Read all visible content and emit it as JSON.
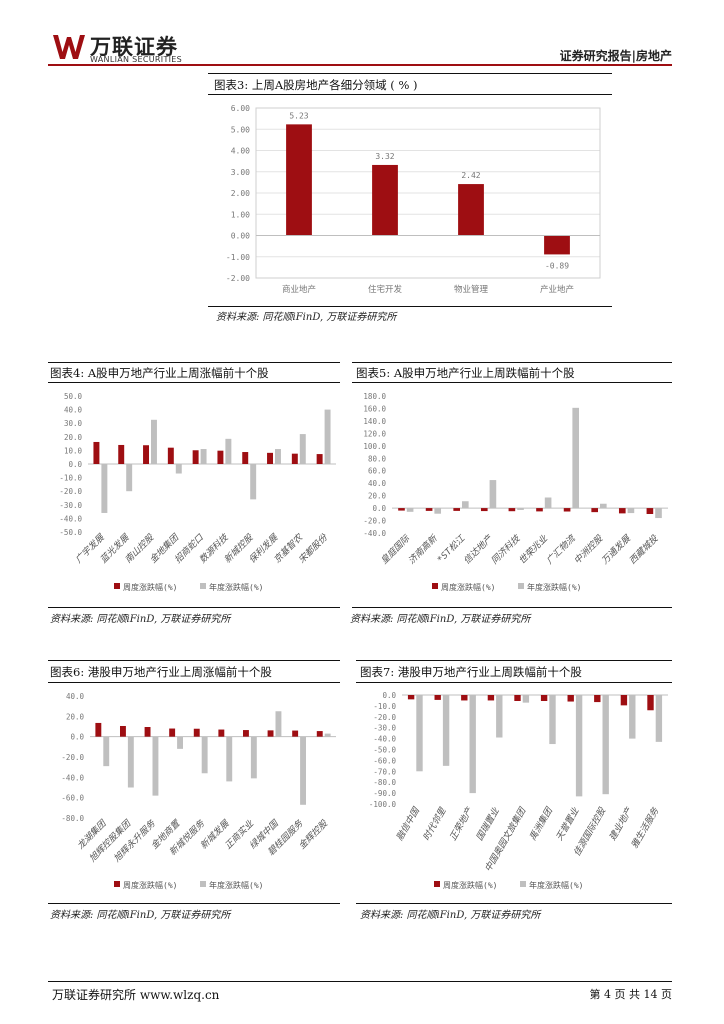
{
  "header": {
    "logo_cn": "万联证券",
    "logo_en": "WANLIAN SECURITIES",
    "report_type": "证券研究报告|房地产"
  },
  "colors": {
    "brand": "#9e0e12",
    "week_bar": "#9e0e12",
    "year_bar": "#bfbfbf"
  },
  "figures": [
    {
      "id": "fig3",
      "title": "图表3: 上周A股房地产各细分领域 ( % )",
      "source": "资料来源: 同花顺iFinD, 万联证券研究所"
    },
    {
      "id": "fig4",
      "title": "图表4: A股申万地产行业上周涨幅前十个股",
      "source": "资料来源: 同花顺iFinD, 万联证券研究所"
    },
    {
      "id": "fig5",
      "title": "图表5: A股申万地产行业上周跌幅前十个股",
      "source": "资料来源: 同花顺iFinD, 万联证券研究所"
    },
    {
      "id": "fig6",
      "title": "图表6: 港股申万地产行业上周涨幅前十个股",
      "source": "资料来源: 同花顺iFinD, 万联证券研究所"
    },
    {
      "id": "fig7",
      "title": "图表7: 港股申万地产行业上周跌幅前十个股",
      "source": "资料来源: 同花顺iFinD, 万联证券研究所"
    }
  ],
  "chart_data": [
    {
      "type": "bar",
      "categories": [
        "商业地产",
        "住宅开发",
        "物业管理",
        "产业地产"
      ],
      "values": [
        5.23,
        3.32,
        2.42,
        -0.89
      ],
      "value_labels": [
        "5.23",
        "3.32",
        "2.42",
        "-0.89"
      ],
      "ylim": [
        -2,
        6
      ],
      "yticks": [
        "6.00",
        "5.00",
        "4.00",
        "3.00",
        "2.00",
        "1.00",
        "0.00",
        "-1.00",
        "-2.00"
      ],
      "grid": true
    },
    {
      "type": "bar",
      "categories": [
        "广宇发展",
        "蓝光发展",
        "南山控股",
        "金地集团",
        "招商蛇口",
        "数源科技",
        "新城控股",
        "保利发展",
        "京基智农",
        "宋都股份"
      ],
      "series": [
        {
          "name": "周度涨跌幅(%)",
          "values": [
            16.2,
            14.0,
            13.8,
            12.0,
            10.1,
            9.8,
            8.8,
            8.2,
            7.6,
            7.3
          ]
        },
        {
          "name": "年度涨跌幅(%)",
          "values": [
            -36.0,
            -20.0,
            32.5,
            -7.0,
            11.0,
            18.5,
            -26.0,
            11.0,
            22.0,
            40.0
          ]
        }
      ],
      "ylim": [
        -50,
        50
      ],
      "yticks": [
        "50.0",
        "40.0",
        "30.0",
        "20.0",
        "10.0",
        "0.0",
        "-10.0",
        "-20.0",
        "-30.0",
        "-40.0",
        "-50.0"
      ],
      "legend": "bottom",
      "grid": false
    },
    {
      "type": "bar",
      "categories": [
        "皇庭国际",
        "济南高新",
        "*ST松江",
        "信达地产",
        "同济科技",
        "世荣兆业",
        "广汇物流",
        "中洲控股",
        "万通发展",
        "西藏城投"
      ],
      "series": [
        {
          "name": "周度涨跌幅(%)",
          "values": [
            -4.0,
            -4.5,
            -4.5,
            -4.8,
            -5.0,
            -5.3,
            -5.5,
            -6.5,
            -8.5,
            -9.5
          ]
        },
        {
          "name": "年度涨跌幅(%)",
          "values": [
            -6.0,
            -9.0,
            11.0,
            45.0,
            -3.0,
            17.0,
            161.0,
            7.0,
            -8.0,
            -16.0
          ]
        }
      ],
      "ylim": [
        -40,
        180
      ],
      "yticks": [
        "180.0",
        "160.0",
        "140.0",
        "120.0",
        "100.0",
        "80.0",
        "60.0",
        "40.0",
        "20.0",
        "0.0",
        "-20.0",
        "-40.0"
      ],
      "legend": "bottom",
      "grid": false
    },
    {
      "type": "bar",
      "categories": [
        "龙湖集团",
        "旭辉控股集团",
        "旭辉永升服务",
        "金地商置",
        "新城悦服务",
        "新城发展",
        "正商实业",
        "绿城中国",
        "碧桂园服务",
        "金辉控股"
      ],
      "series": [
        {
          "name": "周度涨跌幅(%)",
          "values": [
            13.5,
            10.5,
            9.5,
            8.0,
            7.8,
            7.0,
            6.5,
            6.2,
            6.0,
            5.5
          ]
        },
        {
          "name": "年度涨跌幅(%)",
          "values": [
            -29.0,
            -50.0,
            -58.0,
            -12.0,
            -36.0,
            -44.0,
            -41.0,
            25.0,
            -67.0,
            3.0
          ]
        }
      ],
      "ylim": [
        -80,
        40
      ],
      "yticks": [
        "40.0",
        "20.0",
        "0.0",
        "-20.0",
        "-40.0",
        "-60.0",
        "-80.0"
      ],
      "legend": "bottom",
      "grid": false
    },
    {
      "type": "bar",
      "categories": [
        "融信中国",
        "时代邻里",
        "正荣地产",
        "国瑞置业",
        "中国奥园文旅集团",
        "禹洲集团",
        "天誉置业",
        "佳源国际控股",
        "建业地产",
        "雅生活服务"
      ],
      "series": [
        {
          "name": "周度涨跌幅(%)",
          "values": [
            -4.0,
            -4.5,
            -5.0,
            -5.0,
            -5.5,
            -5.5,
            -6.0,
            -6.5,
            -9.5,
            -14.0
          ]
        },
        {
          "name": "年度涨跌幅(%)",
          "values": [
            -70.0,
            -65.0,
            -90.0,
            -39.0,
            -7.0,
            -45.0,
            -93.0,
            -91.0,
            -40.0,
            -43.0
          ]
        }
      ],
      "ylim": [
        -100,
        0
      ],
      "yticks": [
        "0.0",
        "-10.0",
        "-20.0",
        "-30.0",
        "-40.0",
        "-50.0",
        "-60.0",
        "-70.0",
        "-80.0",
        "-90.0",
        "-100.0"
      ],
      "legend": "bottom",
      "grid": false
    }
  ],
  "footer": {
    "left": "万联证券研究所 www.wlzq.cn",
    "right": "第 4 页 共 14 页"
  }
}
